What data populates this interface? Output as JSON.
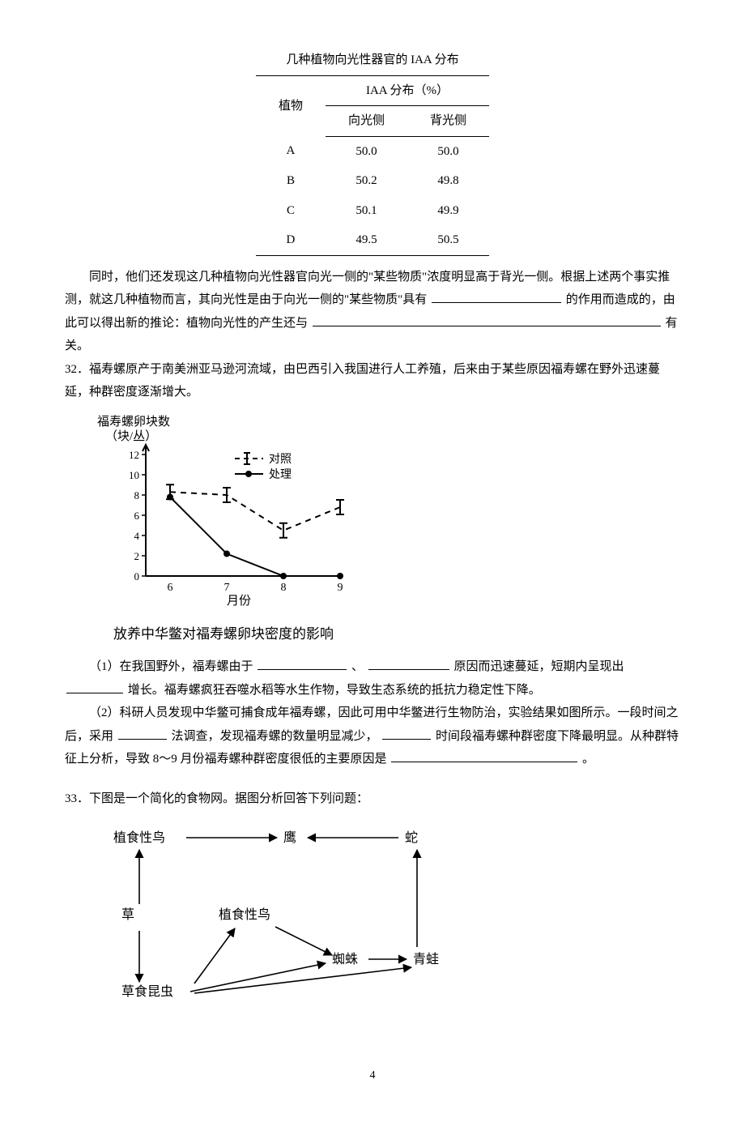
{
  "table": {
    "title": "几种植物向光性器官的 IAA 分布",
    "col_plant": "植物",
    "col_header_span": "IAA 分布（%）",
    "col_light": "向光侧",
    "col_shade": "背光侧",
    "rows": [
      {
        "plant": "A",
        "light": "50.0",
        "shade": "50.0"
      },
      {
        "plant": "B",
        "light": "50.2",
        "shade": "49.8"
      },
      {
        "plant": "C",
        "light": "50.1",
        "shade": "49.9"
      },
      {
        "plant": "D",
        "light": "49.5",
        "shade": "50.5"
      }
    ]
  },
  "para1_a": "同时，他们还发现这几种植物向光性器官向光一侧的\"某些物质\"浓度明显高于背光一侧。根据上述两个事实推测，就这几种植物而言，其向光性是由于向光一侧的\"某些物质\"具有",
  "para1_b": "的作用而造成的，由此可以得出新的推论：植物向光性的产生还与",
  "para1_c": "有关。",
  "q32": {
    "num": "32．",
    "stem": "福寿螺原产于南美洲亚马逊河流域，由巴西引入我国进行人工养殖，后来由于某些原因福寿螺在野外迅速蔓延，种群密度逐渐增大。",
    "caption": "放养中华鳖对福寿螺卵块密度的影响",
    "sub1_a": "（1）在我国野外，福寿螺由于",
    "sub1_b": "、",
    "sub1_c": "原因而迅速蔓延，短期内呈现出",
    "sub1_d": "增长。福寿螺疯狂吞噬水稻等水生作物，导致生态系统的抵抗力稳定性下降。",
    "sub2_a": "（2）科研人员发现中华鳖可捕食成年福寿螺，因此可用中华鳖进行生物防治，实验结果如图所示。一段时间之后，采用",
    "sub2_b": "法调查，发现福寿螺的数量明显减少，",
    "sub2_c": "时间段福寿螺种群密度下降最明显。从种群特征上分析，导致 8～9 月份福寿螺种群密度很低的主要原因是",
    "sub2_d": "。"
  },
  "q33": {
    "num": "33．",
    "stem": "下图是一个简化的食物网。据图分析回答下列问题："
  },
  "foodweb": {
    "n1": "植食性鸟",
    "n2": "鹰",
    "n3": "蛇",
    "n4": "草",
    "n5": "植食性鸟",
    "n6": "蜘蛛",
    "n7": "青蛙",
    "n8": "草食昆虫"
  },
  "chart": {
    "y_label_1": "福寿螺卵块数",
    "y_label_2": "（块/丛）",
    "x_label": "月份",
    "legend_ctrl": "对照",
    "legend_treat": "处理",
    "y_ticks": [
      "0",
      "2",
      "4",
      "6",
      "8",
      "10",
      "12"
    ],
    "x_ticks": [
      "6",
      "7",
      "8",
      "9"
    ],
    "y_max": 12,
    "colors": {
      "axis": "#000",
      "bg": "#fff"
    },
    "series_ctrl": {
      "style": "dashed",
      "marker": "bar",
      "values": [
        {
          "x": 6,
          "y": 8.3
        },
        {
          "x": 7,
          "y": 8.0
        },
        {
          "x": 8,
          "y": 4.5
        },
        {
          "x": 9,
          "y": 6.8
        }
      ]
    },
    "series_treat": {
      "style": "solid",
      "marker": "dot",
      "values": [
        {
          "x": 6,
          "y": 7.8
        },
        {
          "x": 7,
          "y": 2.2
        },
        {
          "x": 8,
          "y": 0.0
        },
        {
          "x": 9,
          "y": 0.0
        }
      ]
    }
  },
  "page_number": "4"
}
